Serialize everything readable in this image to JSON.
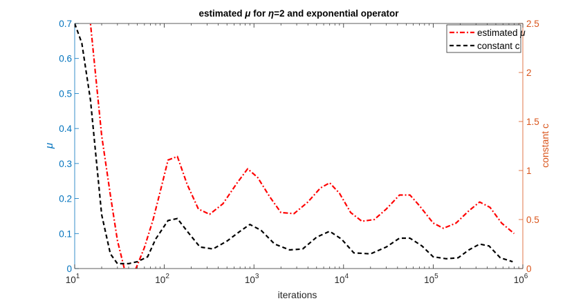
{
  "chart_data": {
    "type": "line",
    "title_parts": [
      "estimated ",
      "μ",
      " for ",
      "η",
      "=2 and exponential operator"
    ],
    "xlabel": "iterations",
    "ylabel_left": "μ",
    "ylabel_right": "constant c",
    "x_scale": "log",
    "xlim": [
      10,
      1000000
    ],
    "ylim_left": [
      0,
      0.7
    ],
    "ylim_right": [
      0,
      2.5
    ],
    "x_ticks": [
      {
        "value": 10,
        "base": "10",
        "exp": "1"
      },
      {
        "value": 100,
        "base": "10",
        "exp": "2"
      },
      {
        "value": 1000,
        "base": "10",
        "exp": "3"
      },
      {
        "value": 10000,
        "base": "10",
        "exp": "4"
      },
      {
        "value": 100000,
        "base": "10",
        "exp": "5"
      },
      {
        "value": 1000000,
        "base": "10",
        "exp": "6"
      }
    ],
    "y_ticks_left": [
      "0",
      "0.1",
      "0.2",
      "0.3",
      "0.4",
      "0.5",
      "0.6",
      "0.7"
    ],
    "y_ticks_right": [
      "0",
      "0.5",
      "1",
      "1.5",
      "2",
      "2.5"
    ],
    "left_axis_color": "#0072bd",
    "right_axis_color": "#d95319",
    "grid": false,
    "legend_position": "top-right",
    "series": [
      {
        "name_parts": [
          "estimated ",
          "μ"
        ],
        "axis": "left",
        "color": "#ff0000",
        "dash": "dashdot",
        "points": [
          [
            10,
            1.1
          ],
          [
            15,
            0.7
          ],
          [
            20,
            0.38
          ],
          [
            25,
            0.21
          ],
          [
            30,
            0.08
          ],
          [
            40,
            -0.05
          ],
          [
            50,
            0.01
          ],
          [
            60,
            0.06
          ],
          [
            75,
            0.14
          ],
          [
            90,
            0.22
          ],
          [
            110,
            0.31
          ],
          [
            140,
            0.32
          ],
          [
            180,
            0.24
          ],
          [
            240,
            0.17
          ],
          [
            320,
            0.155
          ],
          [
            450,
            0.185
          ],
          [
            650,
            0.245
          ],
          [
            850,
            0.285
          ],
          [
            1100,
            0.26
          ],
          [
            1500,
            0.205
          ],
          [
            2000,
            0.16
          ],
          [
            2800,
            0.157
          ],
          [
            4000,
            0.19
          ],
          [
            5500,
            0.23
          ],
          [
            7000,
            0.245
          ],
          [
            9000,
            0.215
          ],
          [
            12000,
            0.16
          ],
          [
            16000,
            0.135
          ],
          [
            22000,
            0.14
          ],
          [
            30000,
            0.17
          ],
          [
            42000,
            0.21
          ],
          [
            55000,
            0.21
          ],
          [
            70000,
            0.18
          ],
          [
            100000,
            0.13
          ],
          [
            130000,
            0.115
          ],
          [
            180000,
            0.13
          ],
          [
            250000,
            0.165
          ],
          [
            330000,
            0.19
          ],
          [
            430000,
            0.175
          ],
          [
            580000,
            0.13
          ],
          [
            800000,
            0.1
          ]
        ]
      },
      {
        "name_parts": [
          "constant c"
        ],
        "axis": "right",
        "color": "#000000",
        "dash": "dashed",
        "points": [
          [
            10,
            2.5
          ],
          [
            12,
            2.3
          ],
          [
            15,
            1.72
          ],
          [
            20,
            0.55
          ],
          [
            25,
            0.15
          ],
          [
            30,
            0.05
          ],
          [
            40,
            0.05
          ],
          [
            50,
            0.07
          ],
          [
            65,
            0.12
          ],
          [
            80,
            0.3
          ],
          [
            110,
            0.49
          ],
          [
            140,
            0.51
          ],
          [
            180,
            0.38
          ],
          [
            250,
            0.22
          ],
          [
            350,
            0.2
          ],
          [
            500,
            0.28
          ],
          [
            700,
            0.38
          ],
          [
            900,
            0.45
          ],
          [
            1200,
            0.39
          ],
          [
            1700,
            0.25
          ],
          [
            2500,
            0.19
          ],
          [
            3500,
            0.2
          ],
          [
            5000,
            0.32
          ],
          [
            7000,
            0.38
          ],
          [
            9500,
            0.3
          ],
          [
            13000,
            0.16
          ],
          [
            20000,
            0.15
          ],
          [
            30000,
            0.22
          ],
          [
            42000,
            0.31
          ],
          [
            55000,
            0.31
          ],
          [
            75000,
            0.23
          ],
          [
            100000,
            0.12
          ],
          [
            140000,
            0.1
          ],
          [
            190000,
            0.11
          ],
          [
            250000,
            0.19
          ],
          [
            330000,
            0.25
          ],
          [
            420000,
            0.23
          ],
          [
            560000,
            0.11
          ],
          [
            770000,
            0.07
          ]
        ]
      }
    ]
  }
}
